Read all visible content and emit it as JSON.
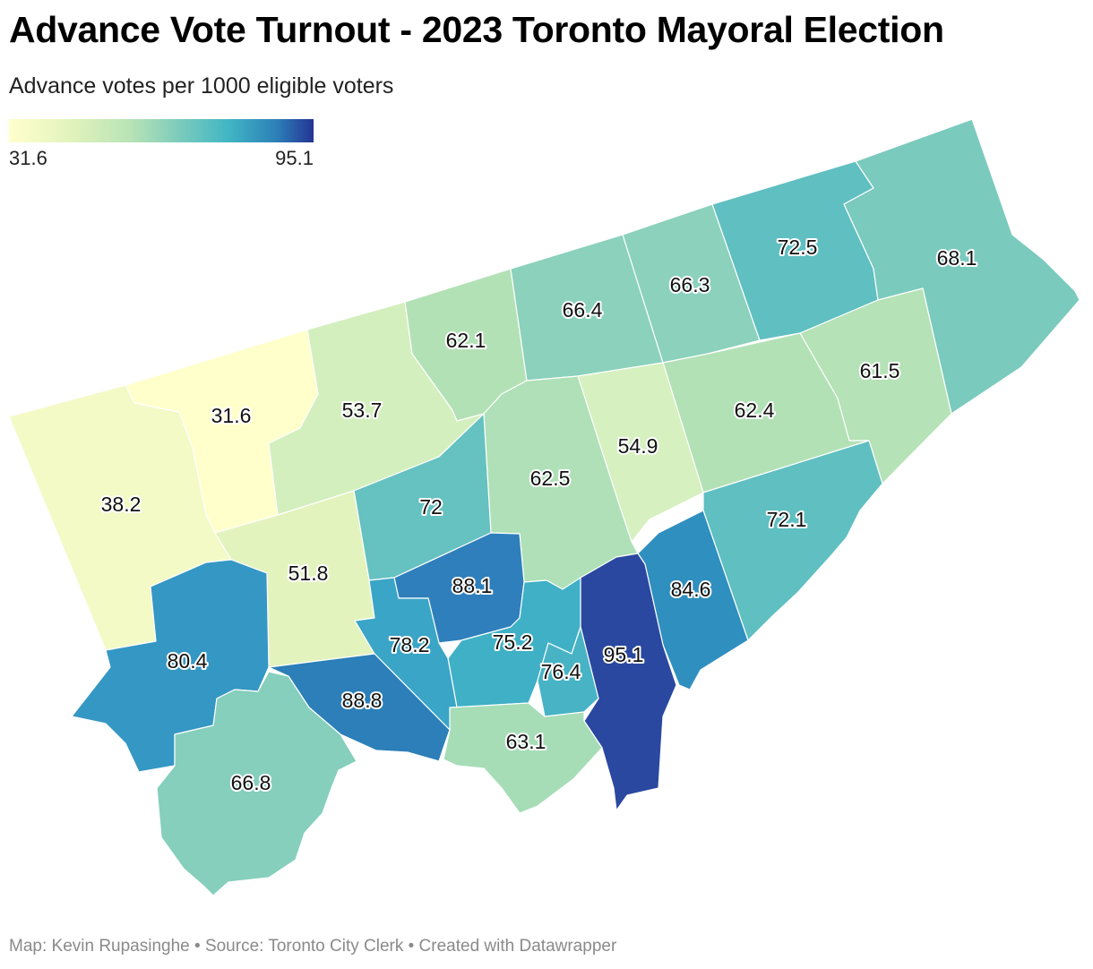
{
  "title": "Advance Vote Turnout - 2023 Toronto Mayoral Election",
  "subtitle": "Advance votes per 1000 eligible voters",
  "legend": {
    "min_label": "31.6",
    "max_label": "95.1",
    "colors": [
      "#ffffcc",
      "#e3f3bd",
      "#b8e3b6",
      "#7fcdbb",
      "#41b6c4",
      "#2c7fb8",
      "#253494"
    ]
  },
  "footer": "Map: Kevin Rupasinghe • Source: Toronto City Clerk • Created with Datawrapper",
  "map": {
    "regions": [
      {
        "id": "w01",
        "value": "38.2"
      },
      {
        "id": "w02",
        "value": "31.6"
      },
      {
        "id": "w03",
        "value": "53.7"
      },
      {
        "id": "w04",
        "value": "62.1"
      },
      {
        "id": "w05",
        "value": "66.4"
      },
      {
        "id": "w06",
        "value": "66.3"
      },
      {
        "id": "w07",
        "value": "72.5"
      },
      {
        "id": "w08",
        "value": "68.1"
      },
      {
        "id": "w09",
        "value": "61.5"
      },
      {
        "id": "w10",
        "value": "62.4"
      },
      {
        "id": "w11",
        "value": "54.9"
      },
      {
        "id": "w12",
        "value": "62.5"
      },
      {
        "id": "w13",
        "value": "72"
      },
      {
        "id": "w14",
        "value": "51.8"
      },
      {
        "id": "w15",
        "value": "72.1"
      },
      {
        "id": "w16",
        "value": "84.6"
      },
      {
        "id": "w17",
        "value": "95.1"
      },
      {
        "id": "w18",
        "value": "88.1"
      },
      {
        "id": "w19",
        "value": "75.2"
      },
      {
        "id": "w20",
        "value": "76.4"
      },
      {
        "id": "w21",
        "value": "78.2"
      },
      {
        "id": "w22",
        "value": "80.4"
      },
      {
        "id": "w23",
        "value": "88.8"
      },
      {
        "id": "w24",
        "value": "63.1"
      },
      {
        "id": "w25",
        "value": "66.8"
      }
    ]
  }
}
